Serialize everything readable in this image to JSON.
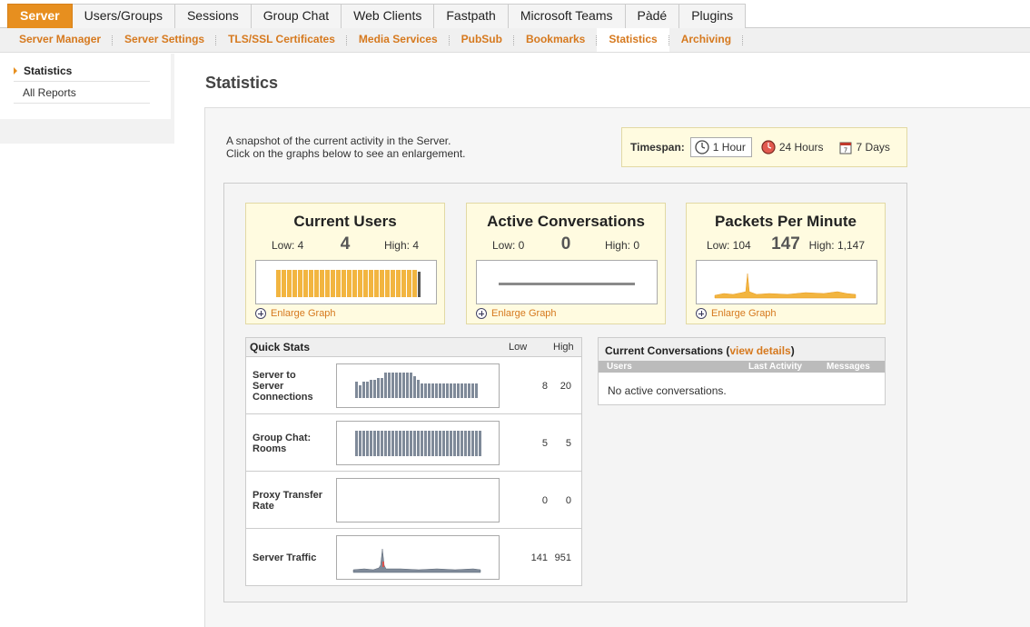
{
  "top_tabs": [
    "Server",
    "Users/Groups",
    "Sessions",
    "Group Chat",
    "Web Clients",
    "Fastpath",
    "Microsoft Teams",
    "Pàdé",
    "Plugins"
  ],
  "sub_tabs": [
    "Server Manager",
    "Server Settings",
    "TLS/SSL Certificates",
    "Media Services",
    "PubSub",
    "Bookmarks",
    "Statistics",
    "Archiving"
  ],
  "sidebar": {
    "items": [
      "Statistics",
      "All Reports"
    ]
  },
  "page": {
    "title": "Statistics",
    "intro_line1": "A snapshot of the current activity in the Server.",
    "intro_line2": "Click on the graphs below to see an enlargement."
  },
  "timespan": {
    "label": "Timespan:",
    "options": [
      "1 Hour",
      "24 Hours",
      "7 Days"
    ],
    "selected": "1 Hour"
  },
  "cards": [
    {
      "title": "Current Users",
      "low": "Low: 4",
      "current": "4",
      "high": "High: 4",
      "enlarge": "Enlarge Graph"
    },
    {
      "title": "Active Conversations",
      "low": "Low: 0",
      "current": "0",
      "high": "High: 0",
      "enlarge": "Enlarge Graph"
    },
    {
      "title": "Packets Per Minute",
      "low": "Low: 104",
      "current": "147",
      "high": "High: 1,147",
      "enlarge": "Enlarge Graph"
    }
  ],
  "quick_stats": {
    "title": "Quick Stats",
    "low_header": "Low",
    "high_header": "High",
    "rows": [
      {
        "label": "Server to Server Connections",
        "low": "8",
        "high": "20"
      },
      {
        "label": "Group Chat: Rooms",
        "low": "5",
        "high": "5"
      },
      {
        "label": "Proxy Transfer Rate",
        "low": "0",
        "high": "0"
      },
      {
        "label": "Server Traffic",
        "low": "141",
        "high": "951"
      }
    ]
  },
  "conversations": {
    "title": "Current Conversations (",
    "link": "view details",
    "close": ")",
    "columns": [
      "Users",
      "Last Activity",
      "Messages"
    ],
    "empty": "No active conversations."
  },
  "colors": {
    "accent": "#e78f1f",
    "link": "#d6791e",
    "bar": "#f2b540",
    "gray_bar": "#7f8a99"
  }
}
